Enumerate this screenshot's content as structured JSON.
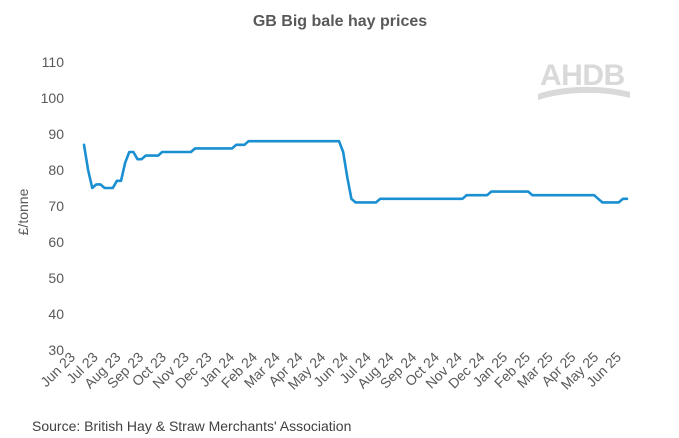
{
  "chart_data": {
    "type": "line",
    "title": "GB Big bale hay prices",
    "xlabel": "",
    "ylabel": "£/tonne",
    "ylim": [
      30,
      110
    ],
    "yticks": [
      30,
      40,
      50,
      60,
      70,
      80,
      90,
      100,
      110
    ],
    "grid": false,
    "x_tick_labels": [
      "Jun 23",
      "Jul 23",
      "Aug 23",
      "Sep 23",
      "Oct 23",
      "Nov 23",
      "Dec 23",
      "Jan 24",
      "Feb 24",
      "Mar 24",
      "Apr 24",
      "May 24",
      "Jun 24",
      "Jul 24",
      "Aug 24",
      "Sep 24",
      "Oct 24",
      "Nov 24",
      "Dec 24",
      "Jan 25",
      "Feb 25",
      "Mar 25",
      "Apr 25",
      "May 25",
      "Jun 25"
    ],
    "series": [
      {
        "name": "GB Big bale hay prices",
        "color": "#1a8fd1",
        "values": [
          87,
          80,
          75,
          76,
          76,
          75,
          75,
          75,
          77,
          77,
          82,
          85,
          85,
          83,
          83,
          84,
          84,
          84,
          84,
          85,
          85,
          85,
          85,
          85,
          85,
          85,
          85,
          86,
          86,
          86,
          86,
          86,
          86,
          86,
          86,
          86,
          86,
          87,
          87,
          87,
          88,
          88,
          88,
          88,
          88,
          88,
          88,
          88,
          88,
          88,
          88,
          88,
          88,
          88,
          88,
          88,
          88,
          88,
          88,
          88,
          88,
          88,
          88,
          85,
          78,
          72,
          71,
          71,
          71,
          71,
          71,
          71,
          72,
          72,
          72,
          72,
          72,
          72,
          72,
          72,
          72,
          72,
          72,
          72,
          72,
          72,
          72,
          72,
          72,
          72,
          72,
          72,
          72,
          73,
          73,
          73,
          73,
          73,
          73,
          74,
          74,
          74,
          74,
          74,
          74,
          74,
          74,
          74,
          74,
          73,
          73,
          73,
          73,
          73,
          73,
          73,
          73,
          73,
          73,
          73,
          73,
          73,
          73,
          73,
          73,
          72,
          71,
          71,
          71,
          71,
          71,
          72,
          72
        ]
      }
    ],
    "source": "Source: British Hay & Straw Merchants' Association",
    "logo": "AHDB"
  }
}
